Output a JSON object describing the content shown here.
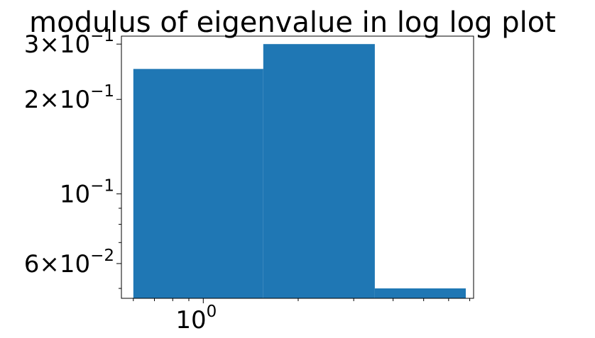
{
  "chart_data": {
    "type": "bar",
    "title": "modulus of eigenvalue in log log plot",
    "xlabel": "",
    "ylabel": "",
    "x_scale": "log",
    "y_scale": "log",
    "xlim": [
      0.55,
      7.2
    ],
    "ylim": [
      0.0465,
      0.318
    ],
    "bars": [
      {
        "x_left": 0.6,
        "x_right": 1.55,
        "value": 0.25
      },
      {
        "x_left": 1.55,
        "x_right": 3.5,
        "value": 0.3
      },
      {
        "x_left": 3.5,
        "x_right": 6.8,
        "value": 0.05
      }
    ],
    "bar_color": "#1f77b4",
    "x_ticks": [
      {
        "value": 1,
        "base": "10",
        "exp": "0"
      }
    ],
    "y_ticks": [
      {
        "value": 0.3,
        "mantissa": "3",
        "base": "10",
        "exp": "−1"
      },
      {
        "value": 0.2,
        "mantissa": "2",
        "base": "10",
        "exp": "−1"
      },
      {
        "value": 0.1,
        "mantissa": "",
        "base": "10",
        "exp": "−1"
      },
      {
        "value": 0.06,
        "mantissa": "6",
        "base": "10",
        "exp": "−2"
      }
    ],
    "x_minor_ticks": [
      0.6,
      0.7,
      0.8,
      0.9,
      2,
      3,
      4,
      5,
      6,
      7
    ],
    "y_minor_ticks": [
      0.05,
      0.07,
      0.08,
      0.09
    ],
    "grid": false,
    "legend": "none"
  }
}
